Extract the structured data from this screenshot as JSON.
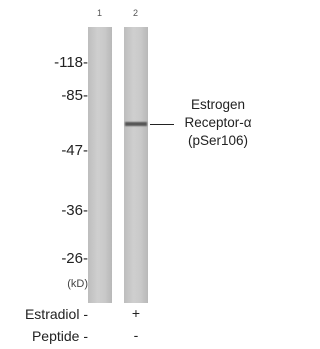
{
  "lanes": [
    "1",
    "2"
  ],
  "markers": [
    "-118-",
    "-85-",
    "-47-",
    "-36-",
    "-26-"
  ],
  "unit": "(kD)",
  "annotation": [
    "Estrogen",
    "Receptor-α",
    "(pSer106)"
  ],
  "conditions": [
    {
      "label": "Estradiol -",
      "lane2": "+"
    },
    {
      "label": "Peptide -",
      "lane2": "-"
    }
  ]
}
